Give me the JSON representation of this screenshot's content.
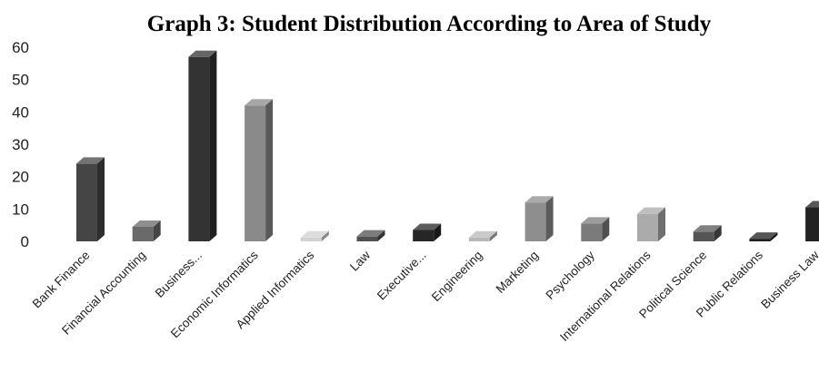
{
  "chart_data": {
    "type": "bar",
    "title": "Graph 3: Student Distribution According to Area of Study",
    "xlabel": "",
    "ylabel": "",
    "ylim": [
      0,
      60
    ],
    "yticks": [
      "0",
      "10",
      "20",
      "30",
      "40",
      "50",
      "60"
    ],
    "grid": false,
    "legend": "none",
    "style": "3d-column",
    "categories": [
      "Bank Finance",
      "Financial Accounting",
      "Business...",
      "Economic Informatics",
      "Applied Informatics",
      "Law",
      "Executive...",
      "Engineering",
      "Marketing",
      "Psychology",
      "International Relations",
      "Political Science",
      "Public Relations",
      "Business Law"
    ],
    "values": [
      24,
      4.5,
      57,
      42,
      1.2,
      1.5,
      3.5,
      1.2,
      12,
      5.5,
      8.5,
      3,
      0.8,
      10.5
    ],
    "colors": [
      "#454545",
      "#6a6a6a",
      "#333333",
      "#8a8a8a",
      "#d2d2d2",
      "#505050",
      "#262626",
      "#b8b8b8",
      "#8e8e8e",
      "#7b7b7b",
      "#ababab",
      "#555555",
      "#1e1e1e",
      "#222222"
    ]
  }
}
